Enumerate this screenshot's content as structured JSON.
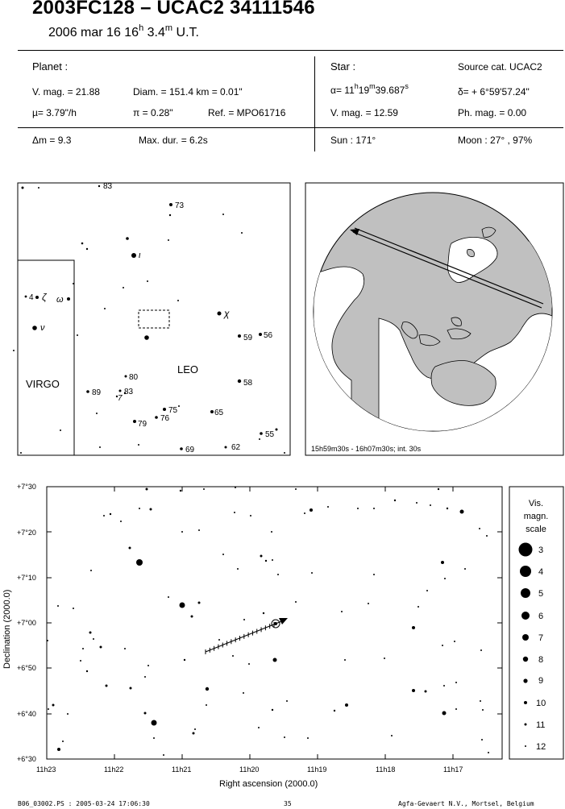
{
  "header": {
    "title": "2003FC128  –  UCAC2 34111546",
    "date": "2006 mar 16  16",
    "hour_unit": "h",
    "minutes": " 3.4",
    "minute_unit": "m",
    "ut": " U.T."
  },
  "planet": {
    "heading": "Planet :",
    "vmag": "V. mag. = 21.88",
    "diam": "Diam. = 151.4 km = 0.01\"",
    "mu": "µ=  3.79\"/h",
    "pi": "π =  0.28\"",
    "ref": "Ref. = MPO61716",
    "dm": "Δm = 9.3",
    "maxdur": "Max. dur. = 6.2s"
  },
  "star": {
    "heading": "Star :",
    "source": "Source cat.  UCAC2",
    "alpha_pre": "α= 11",
    "alpha_h": "h",
    "alpha_m_val": "19",
    "alpha_m": "m",
    "alpha_s_val": "39.687",
    "alpha_s": "s",
    "delta": "δ= + 6°59'57.24\"",
    "vmag": "V. mag. = 12.59",
    "phmag": "Ph. mag. =  0.00",
    "sun": "Sun :  171°",
    "moon": "Moon :   27° , 97%"
  },
  "star_chart": {
    "constellations": [
      "LEO",
      "VIRGO"
    ],
    "labels": {
      "n83": "83",
      "n73": "73",
      "iota": "ι",
      "chi": "χ",
      "n4": "4",
      "zeta": "ζ",
      "omega": "ω",
      "nu": "ν",
      "n59": "59",
      "n56": "56",
      "n80": "80",
      "n58": "58",
      "n89": "89",
      "n83b": "83",
      "n7": "7",
      "n75": "75",
      "n76": "76",
      "n79": "79",
      "n65": "65",
      "n55": "55",
      "n69": "69",
      "n62": "62"
    }
  },
  "globe": {
    "caption": "15h59m30s - 16h07m30s; int. 30s",
    "colors": {
      "ocean": "#ffffff",
      "land": "#c0c0c0"
    }
  },
  "detail_chart": {
    "xlabel": "Right ascension (2000.0)",
    "ylabel": "Declination (2000.0)",
    "x_ticks": [
      "11h23",
      "11h22",
      "11h21",
      "11h20",
      "11h19",
      "11h18",
      "11h17"
    ],
    "y_ticks": [
      "+7°30",
      "+7°20",
      "+7°10",
      "+7°00",
      "+6°50",
      "+6°40",
      "+6°30"
    ]
  },
  "scale": {
    "title": [
      "Vis.",
      "magn.",
      "scale"
    ],
    "mags": [
      "3",
      "4",
      "5",
      "6",
      "7",
      "8",
      "9",
      "10",
      "11",
      "12"
    ]
  },
  "footer": {
    "left": "B06_03002.PS : 2005-03-24 17:06:30",
    "page": "35",
    "right": "Agfa-Gevaert N.V., Mortsel, Belgium"
  }
}
